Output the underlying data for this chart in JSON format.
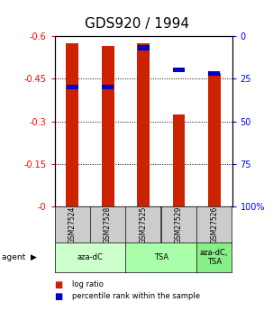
{
  "title": "GDS920 / 1994",
  "samples": [
    "GSM27524",
    "GSM27528",
    "GSM27525",
    "GSM27529",
    "GSM27526"
  ],
  "log_ratio": [
    -0.575,
    -0.565,
    -0.575,
    -0.325,
    -0.47
  ],
  "percentile": [
    30,
    30,
    7,
    20,
    22
  ],
  "ylim_left": [
    0.0,
    -0.6
  ],
  "yticks_left": [
    0,
    -0.15,
    -0.3,
    -0.45,
    -0.6
  ],
  "left_tick_labels": [
    "-0",
    "-0.15",
    "-0.3",
    "-0.45",
    "-0.6"
  ],
  "right_tick_labels": [
    "100%",
    "75",
    "50",
    "25",
    "0"
  ],
  "agents": [
    {
      "label": "aza-dC",
      "count": 2,
      "color": "#ccffcc"
    },
    {
      "label": "TSA",
      "count": 2,
      "color": "#aaffaa"
    },
    {
      "label": "aza-dC,\nTSA",
      "count": 1,
      "color": "#88ee88"
    }
  ],
  "bar_color": "#cc2200",
  "percentile_color": "#0000cc",
  "bar_width": 0.35,
  "background_color": "#ffffff",
  "title_fontsize": 11,
  "tick_fontsize": 7,
  "cell_bg": "#cccccc",
  "legend_square_size": 7
}
